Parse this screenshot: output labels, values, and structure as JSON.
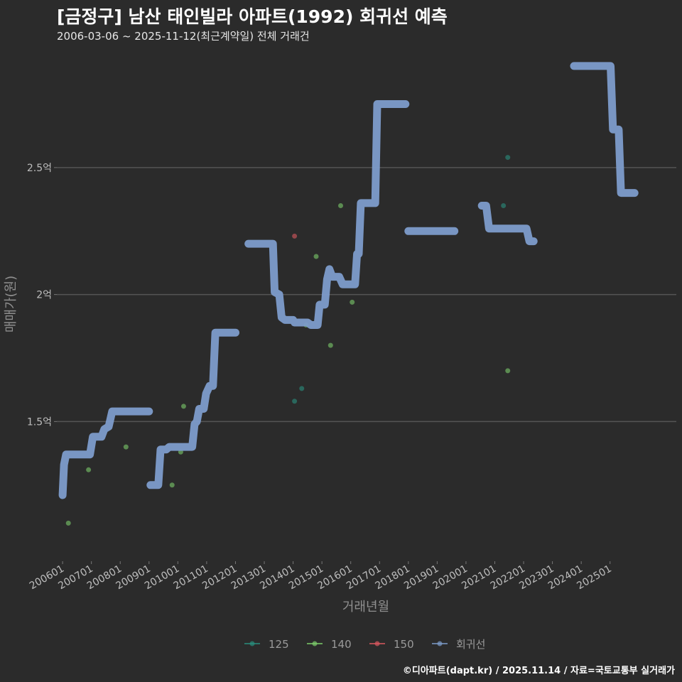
{
  "header": {
    "title": "[금정구] 남산 태인빌라 아파트(1992) 회귀선 예측",
    "subtitle": "2006-03-06 ~ 2025-11-12(최근계약일) 전체 거래건"
  },
  "footer": {
    "credit": "©디아파트(dapt.kr) / 2025.11.14 / 자료=국토교통부 실거래가"
  },
  "chart_data": {
    "type": "line",
    "title": "[금정구] 남산 태인빌라 아파트(1992) 회귀선 예측",
    "xlabel": "거래년월",
    "ylabel": "매매가(원)",
    "x_unit": "decimal year",
    "y_unit": "억",
    "xlim": [
      2005.8,
      2027.3
    ],
    "ylim": [
      0.95,
      2.95
    ],
    "x_ticks": [
      {
        "label": "200601",
        "value": 2006.0
      },
      {
        "label": "200701",
        "value": 2007.0
      },
      {
        "label": "200801",
        "value": 2008.0
      },
      {
        "label": "200901",
        "value": 2009.0
      },
      {
        "label": "201001",
        "value": 2010.0
      },
      {
        "label": "201101",
        "value": 2011.0
      },
      {
        "label": "201201",
        "value": 2012.0
      },
      {
        "label": "201301",
        "value": 2013.0
      },
      {
        "label": "201401",
        "value": 2014.0
      },
      {
        "label": "201501",
        "value": 2015.0
      },
      {
        "label": "201601",
        "value": 2016.0
      },
      {
        "label": "201701",
        "value": 2017.0
      },
      {
        "label": "201801",
        "value": 2018.0
      },
      {
        "label": "201901",
        "value": 2019.0
      },
      {
        "label": "202001",
        "value": 2020.0
      },
      {
        "label": "202101",
        "value": 2021.0
      },
      {
        "label": "202201",
        "value": 2022.0
      },
      {
        "label": "202301",
        "value": 2023.0
      },
      {
        "label": "202401",
        "value": 2024.0
      },
      {
        "label": "202501",
        "value": 2025.0
      }
    ],
    "y_ticks": [
      {
        "label": "1.5억",
        "value": 1.5
      },
      {
        "label": "2억",
        "value": 2.0
      },
      {
        "label": "2.5억",
        "value": 2.5
      }
    ],
    "grid": true,
    "legend_position": "bottom",
    "legend": [
      {
        "name": "125",
        "color": "#2a8f7e"
      },
      {
        "name": "140",
        "color": "#7ccc6b"
      },
      {
        "name": "150",
        "color": "#d9595f"
      },
      {
        "name": "회귀선",
        "color": "#7d9ccb"
      }
    ],
    "scatter": [
      {
        "group": "140",
        "x": 2006.2,
        "y": 1.1
      },
      {
        "group": "140",
        "x": 2006.9,
        "y": 1.31
      },
      {
        "group": "140",
        "x": 2008.2,
        "y": 1.4
      },
      {
        "group": "140",
        "x": 2009.8,
        "y": 1.25
      },
      {
        "group": "140",
        "x": 2010.1,
        "y": 1.38
      },
      {
        "group": "140",
        "x": 2010.2,
        "y": 1.56
      },
      {
        "group": "125",
        "x": 2014.05,
        "y": 1.58
      },
      {
        "group": "125",
        "x": 2014.3,
        "y": 1.63
      },
      {
        "group": "150",
        "x": 2014.05,
        "y": 2.23
      },
      {
        "group": "140",
        "x": 2014.45,
        "y": 1.88
      },
      {
        "group": "140",
        "x": 2014.8,
        "y": 2.15
      },
      {
        "group": "140",
        "x": 2015.3,
        "y": 1.8
      },
      {
        "group": "140",
        "x": 2015.65,
        "y": 2.35
      },
      {
        "group": "140",
        "x": 2016.05,
        "y": 1.97
      },
      {
        "group": "125",
        "x": 2021.3,
        "y": 2.35
      },
      {
        "group": "125",
        "x": 2021.45,
        "y": 2.54
      },
      {
        "group": "140",
        "x": 2021.45,
        "y": 1.7
      }
    ],
    "series": [
      {
        "name": "회귀선",
        "segment": 1,
        "points": [
          [
            2006.0,
            1.21
          ],
          [
            2006.05,
            1.33
          ],
          [
            2006.12,
            1.37
          ],
          [
            2006.95,
            1.37
          ],
          [
            2007.05,
            1.44
          ],
          [
            2007.35,
            1.44
          ],
          [
            2007.45,
            1.47
          ],
          [
            2007.6,
            1.48
          ],
          [
            2007.72,
            1.54
          ],
          [
            2009.0,
            1.54
          ]
        ]
      },
      {
        "name": "회귀선",
        "segment": 2,
        "points": [
          [
            2009.05,
            1.25
          ],
          [
            2009.32,
            1.25
          ],
          [
            2009.4,
            1.39
          ],
          [
            2009.6,
            1.39
          ],
          [
            2009.7,
            1.4
          ],
          [
            2010.5,
            1.4
          ],
          [
            2010.58,
            1.49
          ],
          [
            2010.66,
            1.5
          ],
          [
            2010.74,
            1.55
          ],
          [
            2010.9,
            1.55
          ],
          [
            2010.98,
            1.61
          ],
          [
            2011.1,
            1.64
          ],
          [
            2011.22,
            1.64
          ],
          [
            2011.3,
            1.85
          ],
          [
            2012.0,
            1.85
          ]
        ]
      },
      {
        "name": "회귀선",
        "segment": 3,
        "points": [
          [
            2012.45,
            2.2
          ],
          [
            2013.3,
            2.2
          ],
          [
            2013.36,
            2.01
          ],
          [
            2013.52,
            2.0
          ],
          [
            2013.6,
            1.91
          ],
          [
            2013.72,
            1.9
          ],
          [
            2014.0,
            1.9
          ],
          [
            2014.05,
            1.89
          ],
          [
            2014.5,
            1.89
          ],
          [
            2014.62,
            1.88
          ],
          [
            2014.85,
            1.88
          ],
          [
            2014.92,
            1.96
          ],
          [
            2015.1,
            1.96
          ],
          [
            2015.18,
            2.06
          ],
          [
            2015.26,
            2.1
          ],
          [
            2015.36,
            2.07
          ],
          [
            2015.6,
            2.07
          ],
          [
            2015.72,
            2.04
          ],
          [
            2016.15,
            2.04
          ],
          [
            2016.22,
            2.16
          ],
          [
            2016.28,
            2.16
          ],
          [
            2016.35,
            2.36
          ],
          [
            2016.85,
            2.36
          ],
          [
            2016.92,
            2.75
          ],
          [
            2017.9,
            2.75
          ]
        ]
      },
      {
        "name": "회귀선",
        "segment": 4,
        "points": [
          [
            2018.0,
            2.25
          ],
          [
            2019.6,
            2.25
          ]
        ]
      },
      {
        "name": "회귀선",
        "segment": 5,
        "points": [
          [
            2020.55,
            2.35
          ],
          [
            2020.7,
            2.35
          ],
          [
            2020.8,
            2.26
          ],
          [
            2022.1,
            2.26
          ],
          [
            2022.2,
            2.21
          ],
          [
            2022.35,
            2.21
          ]
        ]
      },
      {
        "name": "회귀선",
        "segment": 6,
        "points": [
          [
            2023.75,
            2.9
          ],
          [
            2025.02,
            2.9
          ],
          [
            2025.1,
            2.65
          ],
          [
            2025.3,
            2.65
          ],
          [
            2025.38,
            2.4
          ],
          [
            2025.85,
            2.4
          ]
        ]
      }
    ]
  }
}
